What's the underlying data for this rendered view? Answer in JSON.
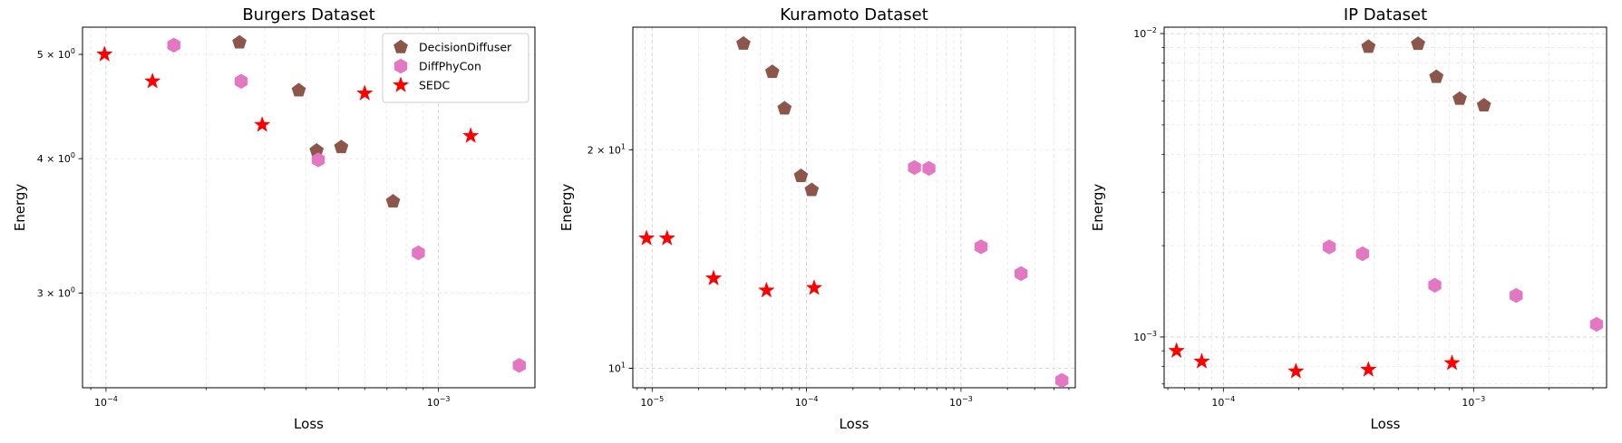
{
  "colors": {
    "DecisionDiffuser": "#8c564b",
    "DiffPhyCon": "#e377c2",
    "SEDC": "#ff0000"
  },
  "legend_placement": "top-right of first panel",
  "chart_data": [
    {
      "type": "scatter",
      "title": "Burgers Dataset",
      "xlabel": "Loss",
      "ylabel": "Energy",
      "xscale": "log",
      "yscale": "log",
      "grid": true,
      "xlim": [
        8.5e-05,
        0.00195
      ],
      "ylim": [
        2.45,
        5.3
      ],
      "xticks": [
        {
          "value": 0.0001,
          "base": "10",
          "exp": "−4"
        },
        {
          "value": 0.001,
          "base": "10",
          "exp": "−3"
        }
      ],
      "yticks": [
        {
          "value": 3,
          "mant": "3 × 10",
          "exp": "0"
        },
        {
          "value": 4,
          "mant": "4 × 10",
          "exp": "0"
        },
        {
          "value": 5,
          "mant": "5 × 10",
          "exp": "0"
        }
      ],
      "legend": true,
      "series": [
        {
          "name": "DecisionDiffuser",
          "marker": "pentagon",
          "points": [
            [
              0.000252,
              5.13
            ],
            [
              0.00038,
              4.63
            ],
            [
              0.00043,
              4.07
            ],
            [
              0.00051,
              4.1
            ],
            [
              0.00073,
              3.65
            ]
          ]
        },
        {
          "name": "DiffPhyCon",
          "marker": "hexagon",
          "points": [
            [
              0.00016,
              5.1
            ],
            [
              0.000255,
              4.72
            ],
            [
              0.000435,
              3.99
            ],
            [
              0.00087,
              3.27
            ],
            [
              0.00175,
              2.57
            ]
          ]
        },
        {
          "name": "SEDC",
          "marker": "star",
          "points": [
            [
              9.9e-05,
              5.0
            ],
            [
              0.000138,
              4.72
            ],
            [
              0.000295,
              4.3
            ],
            [
              0.0006,
              4.6
            ],
            [
              0.00125,
              4.2
            ]
          ]
        }
      ]
    },
    {
      "type": "scatter",
      "title": "Kuramoto Dataset",
      "xlabel": "Loss",
      "ylabel": "Energy",
      "xscale": "log",
      "yscale": "log",
      "grid": true,
      "xlim": [
        7.5e-06,
        0.0055
      ],
      "ylim": [
        9.4,
        29.5
      ],
      "xticks": [
        {
          "value": 1e-05,
          "base": "10",
          "exp": "−5"
        },
        {
          "value": 0.0001,
          "base": "10",
          "exp": "−4"
        },
        {
          "value": 0.001,
          "base": "10",
          "exp": "−3"
        }
      ],
      "yticks": [
        {
          "value": 10,
          "mant": "10",
          "exp": "1"
        },
        {
          "value": 20,
          "mant": "2 × 10",
          "exp": "1"
        }
      ],
      "legend": false,
      "series": [
        {
          "name": "DecisionDiffuser",
          "marker": "pentagon",
          "points": [
            [
              3.9e-05,
              28.0
            ],
            [
              6e-05,
              25.6
            ],
            [
              7.2e-05,
              22.8
            ],
            [
              9.2e-05,
              18.4
            ],
            [
              0.000108,
              17.6
            ]
          ]
        },
        {
          "name": "DiffPhyCon",
          "marker": "hexagon",
          "points": [
            [
              0.0005,
              18.9
            ],
            [
              0.00062,
              18.85
            ],
            [
              0.00135,
              14.7
            ],
            [
              0.00245,
              13.5
            ],
            [
              0.0045,
              9.62
            ]
          ]
        },
        {
          "name": "SEDC",
          "marker": "star",
          "points": [
            [
              9.2e-06,
              15.1
            ],
            [
              1.25e-05,
              15.1
            ],
            [
              2.5e-05,
              13.3
            ],
            [
              5.5e-05,
              12.8
            ],
            [
              0.000112,
              12.9
            ]
          ]
        }
      ]
    },
    {
      "type": "scatter",
      "title": "IP Dataset",
      "xlabel": "Loss",
      "ylabel": "Energy",
      "xscale": "log",
      "yscale": "log",
      "grid": true,
      "xlim": [
        5.8e-05,
        0.0034
      ],
      "ylim": [
        0.00068,
        0.0105
      ],
      "xticks": [
        {
          "value": 0.0001,
          "base": "10",
          "exp": "−4"
        },
        {
          "value": 0.001,
          "base": "10",
          "exp": "−3"
        }
      ],
      "yticks": [
        {
          "value": 0.001,
          "base": "10",
          "exp": "−3"
        },
        {
          "value": 0.01,
          "base": "10",
          "exp": "−2"
        }
      ],
      "legend": false,
      "series": [
        {
          "name": "DecisionDiffuser",
          "marker": "pentagon",
          "points": [
            [
              0.00038,
              0.00905
            ],
            [
              0.0006,
              0.00925
            ],
            [
              0.00071,
              0.0072
            ],
            [
              0.00088,
              0.0061
            ],
            [
              0.0011,
              0.0058
            ]
          ]
        },
        {
          "name": "DiffPhyCon",
          "marker": "hexagon",
          "points": [
            [
              0.000265,
              0.00198
            ],
            [
              0.00036,
              0.00188
            ],
            [
              0.0007,
              0.00148
            ],
            [
              0.00148,
              0.00137
            ],
            [
              0.0031,
              0.0011
            ]
          ]
        },
        {
          "name": "SEDC",
          "marker": "star",
          "points": [
            [
              6.5e-05,
              0.0009
            ],
            [
              8.2e-05,
              0.00083
            ],
            [
              0.000195,
              0.00077
            ],
            [
              0.00038,
              0.00078
            ],
            [
              0.00082,
              0.00082
            ]
          ]
        }
      ]
    }
  ]
}
